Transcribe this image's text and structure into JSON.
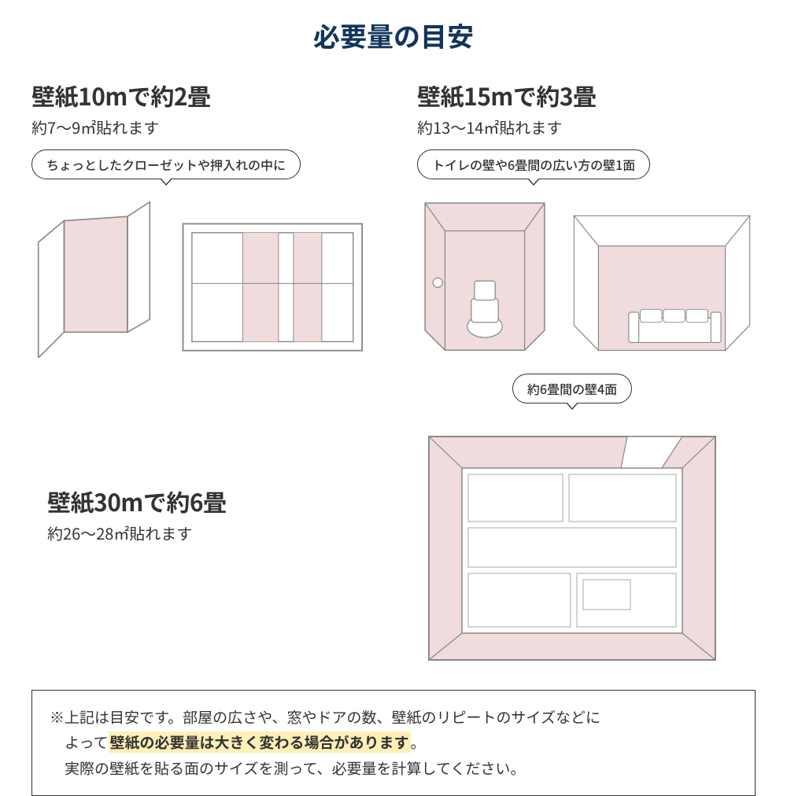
{
  "colors": {
    "title": "#12355b",
    "text": "#333333",
    "pink_fill": "#f0dcdc",
    "line": "#888888",
    "line_dark": "#555555",
    "highlight_bg": "#fff0b8",
    "border": "#333333",
    "bg": "#ffffff"
  },
  "fonts": {
    "title_size": 34,
    "heading_size": 30,
    "sub_size": 20,
    "caption_size": 16,
    "note_size": 19
  },
  "title": "必要量の目安",
  "section1": {
    "heading": "壁紙10mで約2畳",
    "subtitle": "約7〜9㎡貼れます",
    "caption": "ちょっとしたクローゼットや押入れの中に"
  },
  "section2": {
    "heading": "壁紙15mで約3畳",
    "subtitle": "約13〜14㎡貼れます",
    "caption": "トイレの壁や6畳間の広い方の壁1面"
  },
  "section3": {
    "heading": "壁紙30mで約6畳",
    "subtitle": "約26〜28㎡貼れます",
    "caption": "約6畳間の壁4面"
  },
  "note": {
    "line1_prefix": "※上記は目安です。部屋の広さや、窓やドアの数、壁紙のリピートのサイズなどに",
    "line2_prefix": "よって",
    "highlight": "壁紙の必要量は大きく変わる場合があります",
    "line2_suffix": "。",
    "line3": "実際の壁紙を貼る面のサイズを測って、必要量を計算してください。"
  }
}
